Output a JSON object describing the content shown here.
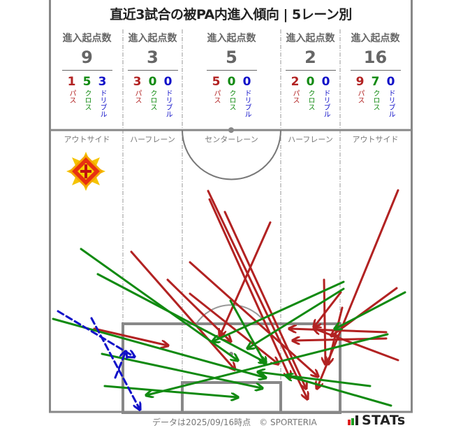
{
  "title": "直近3試合の被PA内進入傾向 | 5レーン別",
  "lanes": [
    {
      "name": "アウトサイド",
      "header": "進入起点数",
      "total": "9",
      "pass": "1",
      "cross": "5",
      "dribble": "3"
    },
    {
      "name": "ハーフレーン",
      "header": "進入起点数",
      "total": "3",
      "pass": "3",
      "cross": "0",
      "dribble": "0"
    },
    {
      "name": "センターレーン",
      "header": "進入起点数",
      "total": "5",
      "pass": "5",
      "cross": "0",
      "dribble": "0"
    },
    {
      "name": "ハーフレーン",
      "header": "進入起点数",
      "total": "2",
      "pass": "2",
      "cross": "0",
      "dribble": "0"
    },
    {
      "name": "アウトサイド",
      "header": "進入起点数",
      "total": "16",
      "pass": "9",
      "cross": "7",
      "dribble": "0"
    }
  ],
  "type_labels": {
    "pass": "パス",
    "cross": "クロス",
    "dribble": "ドリブル"
  },
  "colors": {
    "pass": "#b22222",
    "cross": "#118a11",
    "dribble": "#1010c8",
    "line": "#888888"
  },
  "footer": "データは2025/09/16時点　© SPORTERIA",
  "brand": "STATs",
  "chart_data": {
    "type": "scatter",
    "title": "直近3試合の被PA内進入傾向 | 5レーン別",
    "categories": [
      "アウトサイド",
      "ハーフレーン",
      "センターレーン",
      "ハーフレーン",
      "アウトサイド"
    ],
    "series": [
      {
        "name": "パス",
        "values": [
          1,
          3,
          5,
          2,
          9
        ]
      },
      {
        "name": "クロス",
        "values": [
          5,
          0,
          0,
          0,
          7
        ]
      },
      {
        "name": "ドリブル",
        "values": [
          3,
          0,
          0,
          0,
          0
        ]
      }
    ],
    "totals": [
      9,
      3,
      5,
      2,
      16
    ],
    "arrows": [
      {
        "type": "pass",
        "from": [
          135,
          470
        ],
        "to": [
          240,
          494
        ]
      },
      {
        "type": "pass",
        "from": [
          188,
          360
        ],
        "to": [
          336,
          528
        ]
      },
      {
        "type": "pass",
        "from": [
          240,
          400
        ],
        "to": [
          330,
          488
        ]
      },
      {
        "type": "pass",
        "from": [
          272,
          375
        ],
        "to": [
          455,
          538
        ]
      },
      {
        "type": "pass",
        "from": [
          298,
          273
        ],
        "to": [
          440,
          570
        ]
      },
      {
        "type": "pass",
        "from": [
          300,
          285
        ],
        "to": [
          415,
          540
        ]
      },
      {
        "type": "pass",
        "from": [
          322,
          303
        ],
        "to": [
          438,
          555
        ]
      },
      {
        "type": "pass",
        "from": [
          387,
          318
        ],
        "to": [
          315,
          480
        ]
      },
      {
        "type": "pass",
        "from": [
          272,
          420
        ],
        "to": [
          398,
          520
        ]
      },
      {
        "type": "pass",
        "from": [
          570,
          272
        ],
        "to": [
          454,
          555
        ]
      },
      {
        "type": "pass",
        "from": [
          464,
          400
        ],
        "to": [
          466,
          520
        ]
      },
      {
        "type": "pass",
        "from": [
          553,
          475
        ],
        "to": [
          415,
          470
        ]
      },
      {
        "type": "pass",
        "from": [
          553,
          484
        ],
        "to": [
          420,
          487
        ]
      },
      {
        "type": "pass",
        "from": [
          570,
          515
        ],
        "to": [
          450,
          470
        ]
      },
      {
        "type": "pass",
        "from": [
          568,
          412
        ],
        "to": [
          475,
          480
        ]
      },
      {
        "type": "pass",
        "from": [
          488,
          418
        ],
        "to": [
          450,
          467
        ]
      },
      {
        "type": "pass",
        "from": [
          490,
          440
        ],
        "to": [
          470,
          520
        ]
      },
      {
        "type": "cross",
        "from": [
          116,
          356
        ],
        "to": [
          340,
          515
        ]
      },
      {
        "type": "cross",
        "from": [
          140,
          392
        ],
        "to": [
          380,
          518
        ]
      },
      {
        "type": "cross",
        "from": [
          76,
          456
        ],
        "to": [
          380,
          540
        ]
      },
      {
        "type": "cross",
        "from": [
          146,
          506
        ],
        "to": [
          375,
          555
        ]
      },
      {
        "type": "cross",
        "from": [
          150,
          552
        ],
        "to": [
          340,
          568
        ]
      },
      {
        "type": "cross",
        "from": [
          330,
          430
        ],
        "to": [
          380,
          520
        ]
      },
      {
        "type": "cross",
        "from": [
          492,
          403
        ],
        "to": [
          305,
          488
        ]
      },
      {
        "type": "cross",
        "from": [
          492,
          413
        ],
        "to": [
          355,
          498
        ]
      },
      {
        "type": "cross",
        "from": [
          580,
          418
        ],
        "to": [
          480,
          470
        ]
      },
      {
        "type": "cross",
        "from": [
          555,
          478
        ],
        "to": [
          210,
          565
        ]
      },
      {
        "type": "cross",
        "from": [
          530,
          552
        ],
        "to": [
          370,
          532
        ]
      },
      {
        "type": "cross",
        "from": [
          560,
          580
        ],
        "to": [
          410,
          537
        ]
      },
      {
        "type": "dribble",
        "from": [
          83,
          445
        ],
        "to": [
          192,
          510
        ]
      },
      {
        "type": "dribble",
        "from": [
          131,
          455
        ],
        "to": [
          200,
          585
        ]
      },
      {
        "type": "dribble",
        "from": [
          165,
          540
        ],
        "to": [
          180,
          503
        ]
      }
    ]
  }
}
